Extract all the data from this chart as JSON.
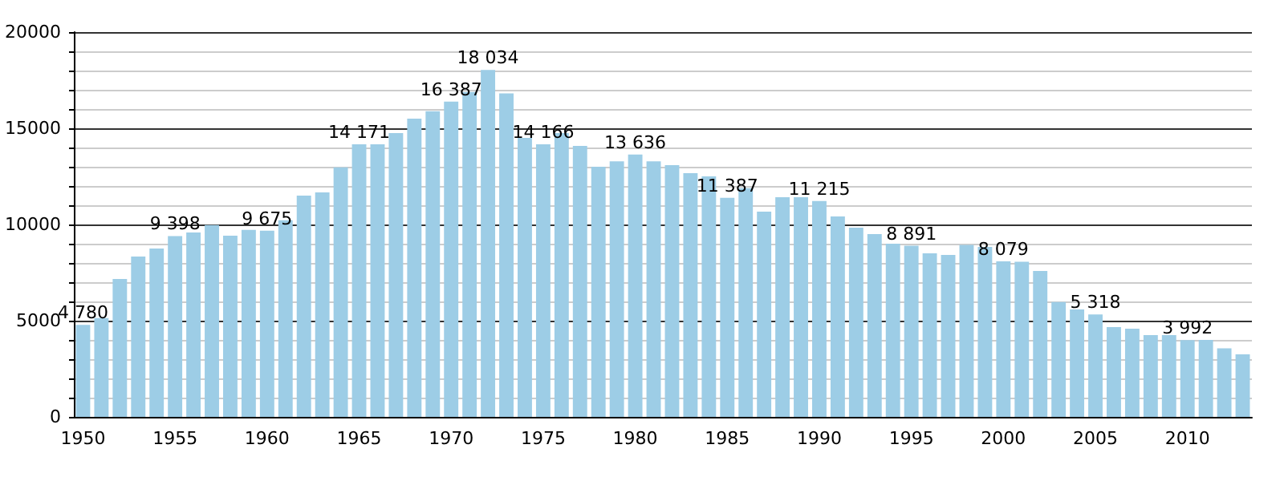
{
  "chart_data": {
    "type": "bar",
    "categories": [
      "1950",
      null,
      null,
      null,
      null,
      "1955",
      null,
      null,
      null,
      null,
      "1960",
      null,
      null,
      null,
      null,
      "1965",
      null,
      null,
      null,
      null,
      "1970",
      null,
      null,
      null,
      null,
      "1975",
      null,
      null,
      null,
      null,
      "1980",
      null,
      null,
      null,
      null,
      "1985",
      null,
      null,
      null,
      null,
      "1990",
      null,
      null,
      null,
      null,
      "1995",
      null,
      null,
      null,
      null,
      "2000",
      null,
      null,
      null,
      null,
      "2005",
      null,
      null,
      null,
      null,
      "2010",
      null,
      null,
      null
    ],
    "values": [
      4780,
      5140,
      7170,
      8330,
      8750,
      9398,
      9580,
      9970,
      9420,
      9720,
      9675,
      10220,
      11500,
      11670,
      12970,
      14171,
      14170,
      14750,
      15500,
      15890,
      16387,
      16890,
      18034,
      16810,
      14500,
      14166,
      14750,
      14080,
      13000,
      13280,
      13636,
      13280,
      13080,
      12670,
      12500,
      11387,
      11890,
      10670,
      11420,
      11420,
      11215,
      10420,
      9830,
      9500,
      9000,
      8891,
      8500,
      8420,
      8940,
      8830,
      8079,
      8060,
      7580,
      5970,
      5580,
      5318,
      4670,
      4580,
      4250,
      4250,
      3992,
      4000,
      3560,
      3250
    ],
    "value_labels": [
      "4 780",
      null,
      null,
      null,
      null,
      "9 398",
      null,
      null,
      null,
      null,
      "9 675",
      null,
      null,
      null,
      null,
      "14 171",
      null,
      null,
      null,
      null,
      "16 387",
      null,
      "18 034",
      null,
      null,
      "14 166",
      null,
      null,
      null,
      null,
      "13 636",
      null,
      null,
      null,
      null,
      "11 387",
      null,
      null,
      null,
      null,
      "11 215",
      null,
      null,
      null,
      null,
      "8 891",
      null,
      null,
      null,
      null,
      "8 079",
      null,
      null,
      null,
      null,
      "5 318",
      null,
      null,
      null,
      null,
      "3 992",
      null,
      null,
      null
    ],
    "color": "#9dcde6",
    "ylim": [
      0,
      20000
    ],
    "yticks": [
      0,
      {
        "value": 1000,
        "label": null
      },
      {
        "value": 2000,
        "label": null
      },
      {
        "value": 3000,
        "label": null
      },
      {
        "value": 4000,
        "label": null
      },
      5000,
      {
        "value": 6000,
        "label": null
      },
      {
        "value": 7000,
        "label": null
      },
      {
        "value": 8000,
        "label": null
      },
      {
        "value": 9000,
        "label": null
      },
      10000,
      {
        "value": 11000,
        "label": null
      },
      {
        "value": 12000,
        "label": null
      },
      {
        "value": 13000,
        "label": null
      },
      {
        "value": 14000,
        "label": null
      },
      15000,
      {
        "value": 16000,
        "label": null
      },
      {
        "value": 17000,
        "label": null
      },
      {
        "value": 18000,
        "label": null
      },
      {
        "value": 19000,
        "label": null
      },
      20000
    ],
    "grid": true
  }
}
